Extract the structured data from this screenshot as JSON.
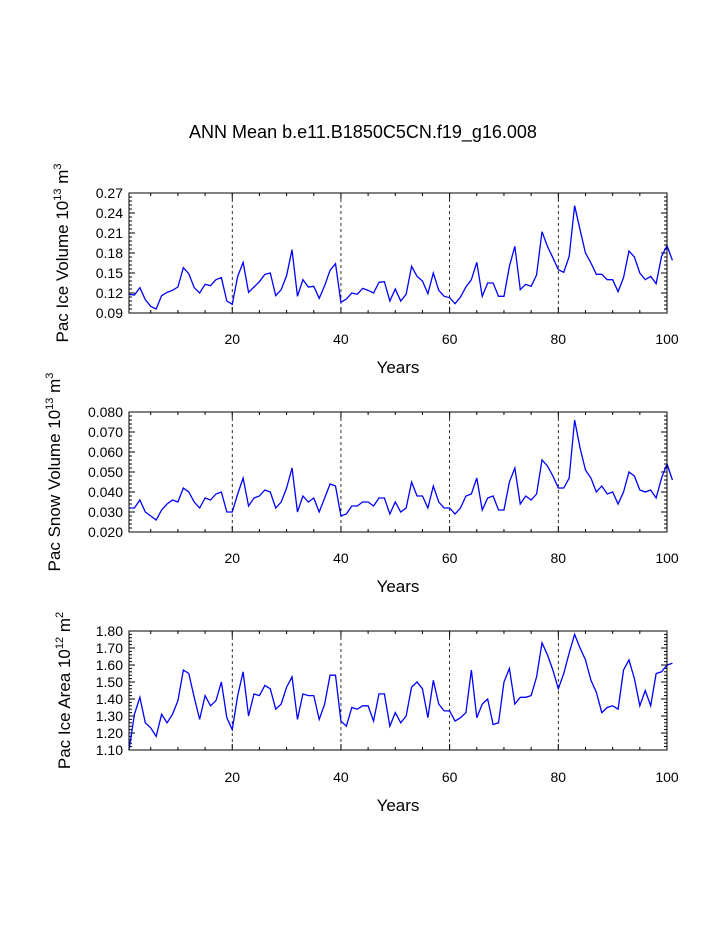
{
  "chart_data": [
    {
      "type": "line",
      "title": "ANN Mean b.e11.B1850C5CN.f19_g16.008",
      "ylabel": {
        "prefix": "Pac Ice Volume 10",
        "exp1": "13",
        "unit": " m",
        "exp2": "3"
      },
      "xlabel": "Years",
      "xlim": [
        1,
        100
      ],
      "ylim": [
        0.09,
        0.27
      ],
      "xticks": [
        20,
        40,
        60,
        80,
        100
      ],
      "yticks": [
        "0.09",
        "0.12",
        "0.15",
        "0.18",
        "0.21",
        "0.24",
        "0.27"
      ],
      "grid_x": [
        20,
        40,
        60,
        80
      ],
      "series_color": "#0000ff",
      "values": [
        0.118,
        0.117,
        0.128,
        0.11,
        0.1,
        0.096,
        0.116,
        0.121,
        0.124,
        0.129,
        0.158,
        0.149,
        0.128,
        0.12,
        0.133,
        0.131,
        0.14,
        0.143,
        0.108,
        0.103,
        0.145,
        0.166,
        0.121,
        0.129,
        0.137,
        0.148,
        0.15,
        0.116,
        0.125,
        0.146,
        0.185,
        0.115,
        0.14,
        0.129,
        0.13,
        0.112,
        0.131,
        0.154,
        0.164,
        0.106,
        0.111,
        0.12,
        0.118,
        0.127,
        0.124,
        0.12,
        0.136,
        0.137,
        0.108,
        0.126,
        0.108,
        0.118,
        0.16,
        0.145,
        0.138,
        0.119,
        0.15,
        0.124,
        0.115,
        0.113,
        0.104,
        0.114,
        0.129,
        0.14,
        0.166,
        0.115,
        0.135,
        0.135,
        0.115,
        0.115,
        0.16,
        0.19,
        0.125,
        0.133,
        0.13,
        0.147,
        0.212,
        0.19,
        0.173,
        0.155,
        0.151,
        0.175,
        0.251,
        0.215,
        0.18,
        0.165,
        0.148,
        0.148,
        0.14,
        0.14,
        0.122,
        0.143,
        0.183,
        0.174,
        0.15,
        0.14,
        0.145,
        0.134,
        0.175,
        0.191,
        0.169
      ]
    },
    {
      "type": "line",
      "ylabel": {
        "prefix": "Pac Snow Volume 10",
        "exp1": "13",
        "unit": " m",
        "exp2": "3"
      },
      "xlabel": "Years",
      "xlim": [
        1,
        100
      ],
      "ylim": [
        0.02,
        0.08
      ],
      "xticks": [
        20,
        40,
        60,
        80,
        100
      ],
      "yticks": [
        "0.020",
        "0.030",
        "0.040",
        "0.050",
        "0.060",
        "0.070",
        "0.080"
      ],
      "grid_x": [
        20,
        40,
        60,
        80
      ],
      "series_color": "#0000ff",
      "values": [
        0.032,
        0.032,
        0.036,
        0.03,
        0.028,
        0.026,
        0.031,
        0.034,
        0.036,
        0.035,
        0.042,
        0.04,
        0.035,
        0.032,
        0.037,
        0.036,
        0.039,
        0.04,
        0.03,
        0.03,
        0.039,
        0.047,
        0.033,
        0.037,
        0.038,
        0.041,
        0.04,
        0.032,
        0.035,
        0.042,
        0.052,
        0.03,
        0.038,
        0.035,
        0.037,
        0.03,
        0.037,
        0.044,
        0.043,
        0.028,
        0.029,
        0.033,
        0.033,
        0.035,
        0.035,
        0.033,
        0.037,
        0.037,
        0.029,
        0.035,
        0.03,
        0.032,
        0.045,
        0.038,
        0.038,
        0.032,
        0.043,
        0.035,
        0.032,
        0.032,
        0.029,
        0.032,
        0.038,
        0.039,
        0.047,
        0.031,
        0.037,
        0.038,
        0.031,
        0.031,
        0.045,
        0.052,
        0.034,
        0.038,
        0.036,
        0.039,
        0.056,
        0.053,
        0.048,
        0.042,
        0.042,
        0.047,
        0.076,
        0.062,
        0.051,
        0.047,
        0.04,
        0.043,
        0.039,
        0.04,
        0.034,
        0.04,
        0.05,
        0.048,
        0.041,
        0.04,
        0.041,
        0.037,
        0.047,
        0.054,
        0.046
      ]
    },
    {
      "type": "line",
      "ylabel": {
        "prefix": "Pac Ice Area 10",
        "exp1": "12",
        "unit": " m",
        "exp2": "2"
      },
      "xlabel": "Years",
      "xlim": [
        1,
        100
      ],
      "ylim": [
        1.1,
        1.8
      ],
      "xticks": [
        20,
        40,
        60,
        80,
        100
      ],
      "yticks": [
        "1.10",
        "1.20",
        "1.30",
        "1.40",
        "1.50",
        "1.60",
        "1.70",
        "1.80"
      ],
      "grid_x": [
        20,
        40,
        60,
        80
      ],
      "series_color": "#0000ff",
      "values": [
        1.1,
        1.31,
        1.41,
        1.26,
        1.23,
        1.18,
        1.31,
        1.26,
        1.31,
        1.39,
        1.57,
        1.55,
        1.41,
        1.28,
        1.42,
        1.36,
        1.39,
        1.5,
        1.29,
        1.22,
        1.42,
        1.56,
        1.3,
        1.43,
        1.42,
        1.48,
        1.46,
        1.34,
        1.37,
        1.47,
        1.53,
        1.28,
        1.43,
        1.42,
        1.42,
        1.28,
        1.37,
        1.54,
        1.54,
        1.27,
        1.24,
        1.35,
        1.34,
        1.36,
        1.36,
        1.27,
        1.43,
        1.43,
        1.24,
        1.32,
        1.26,
        1.3,
        1.47,
        1.5,
        1.46,
        1.29,
        1.51,
        1.37,
        1.33,
        1.33,
        1.27,
        1.29,
        1.32,
        1.57,
        1.29,
        1.37,
        1.4,
        1.25,
        1.26,
        1.5,
        1.58,
        1.37,
        1.41,
        1.41,
        1.42,
        1.53,
        1.73,
        1.66,
        1.57,
        1.46,
        1.55,
        1.67,
        1.78,
        1.7,
        1.63,
        1.51,
        1.44,
        1.32,
        1.35,
        1.36,
        1.34,
        1.57,
        1.63,
        1.52,
        1.36,
        1.45,
        1.36,
        1.55,
        1.56,
        1.6,
        1.61
      ]
    }
  ]
}
